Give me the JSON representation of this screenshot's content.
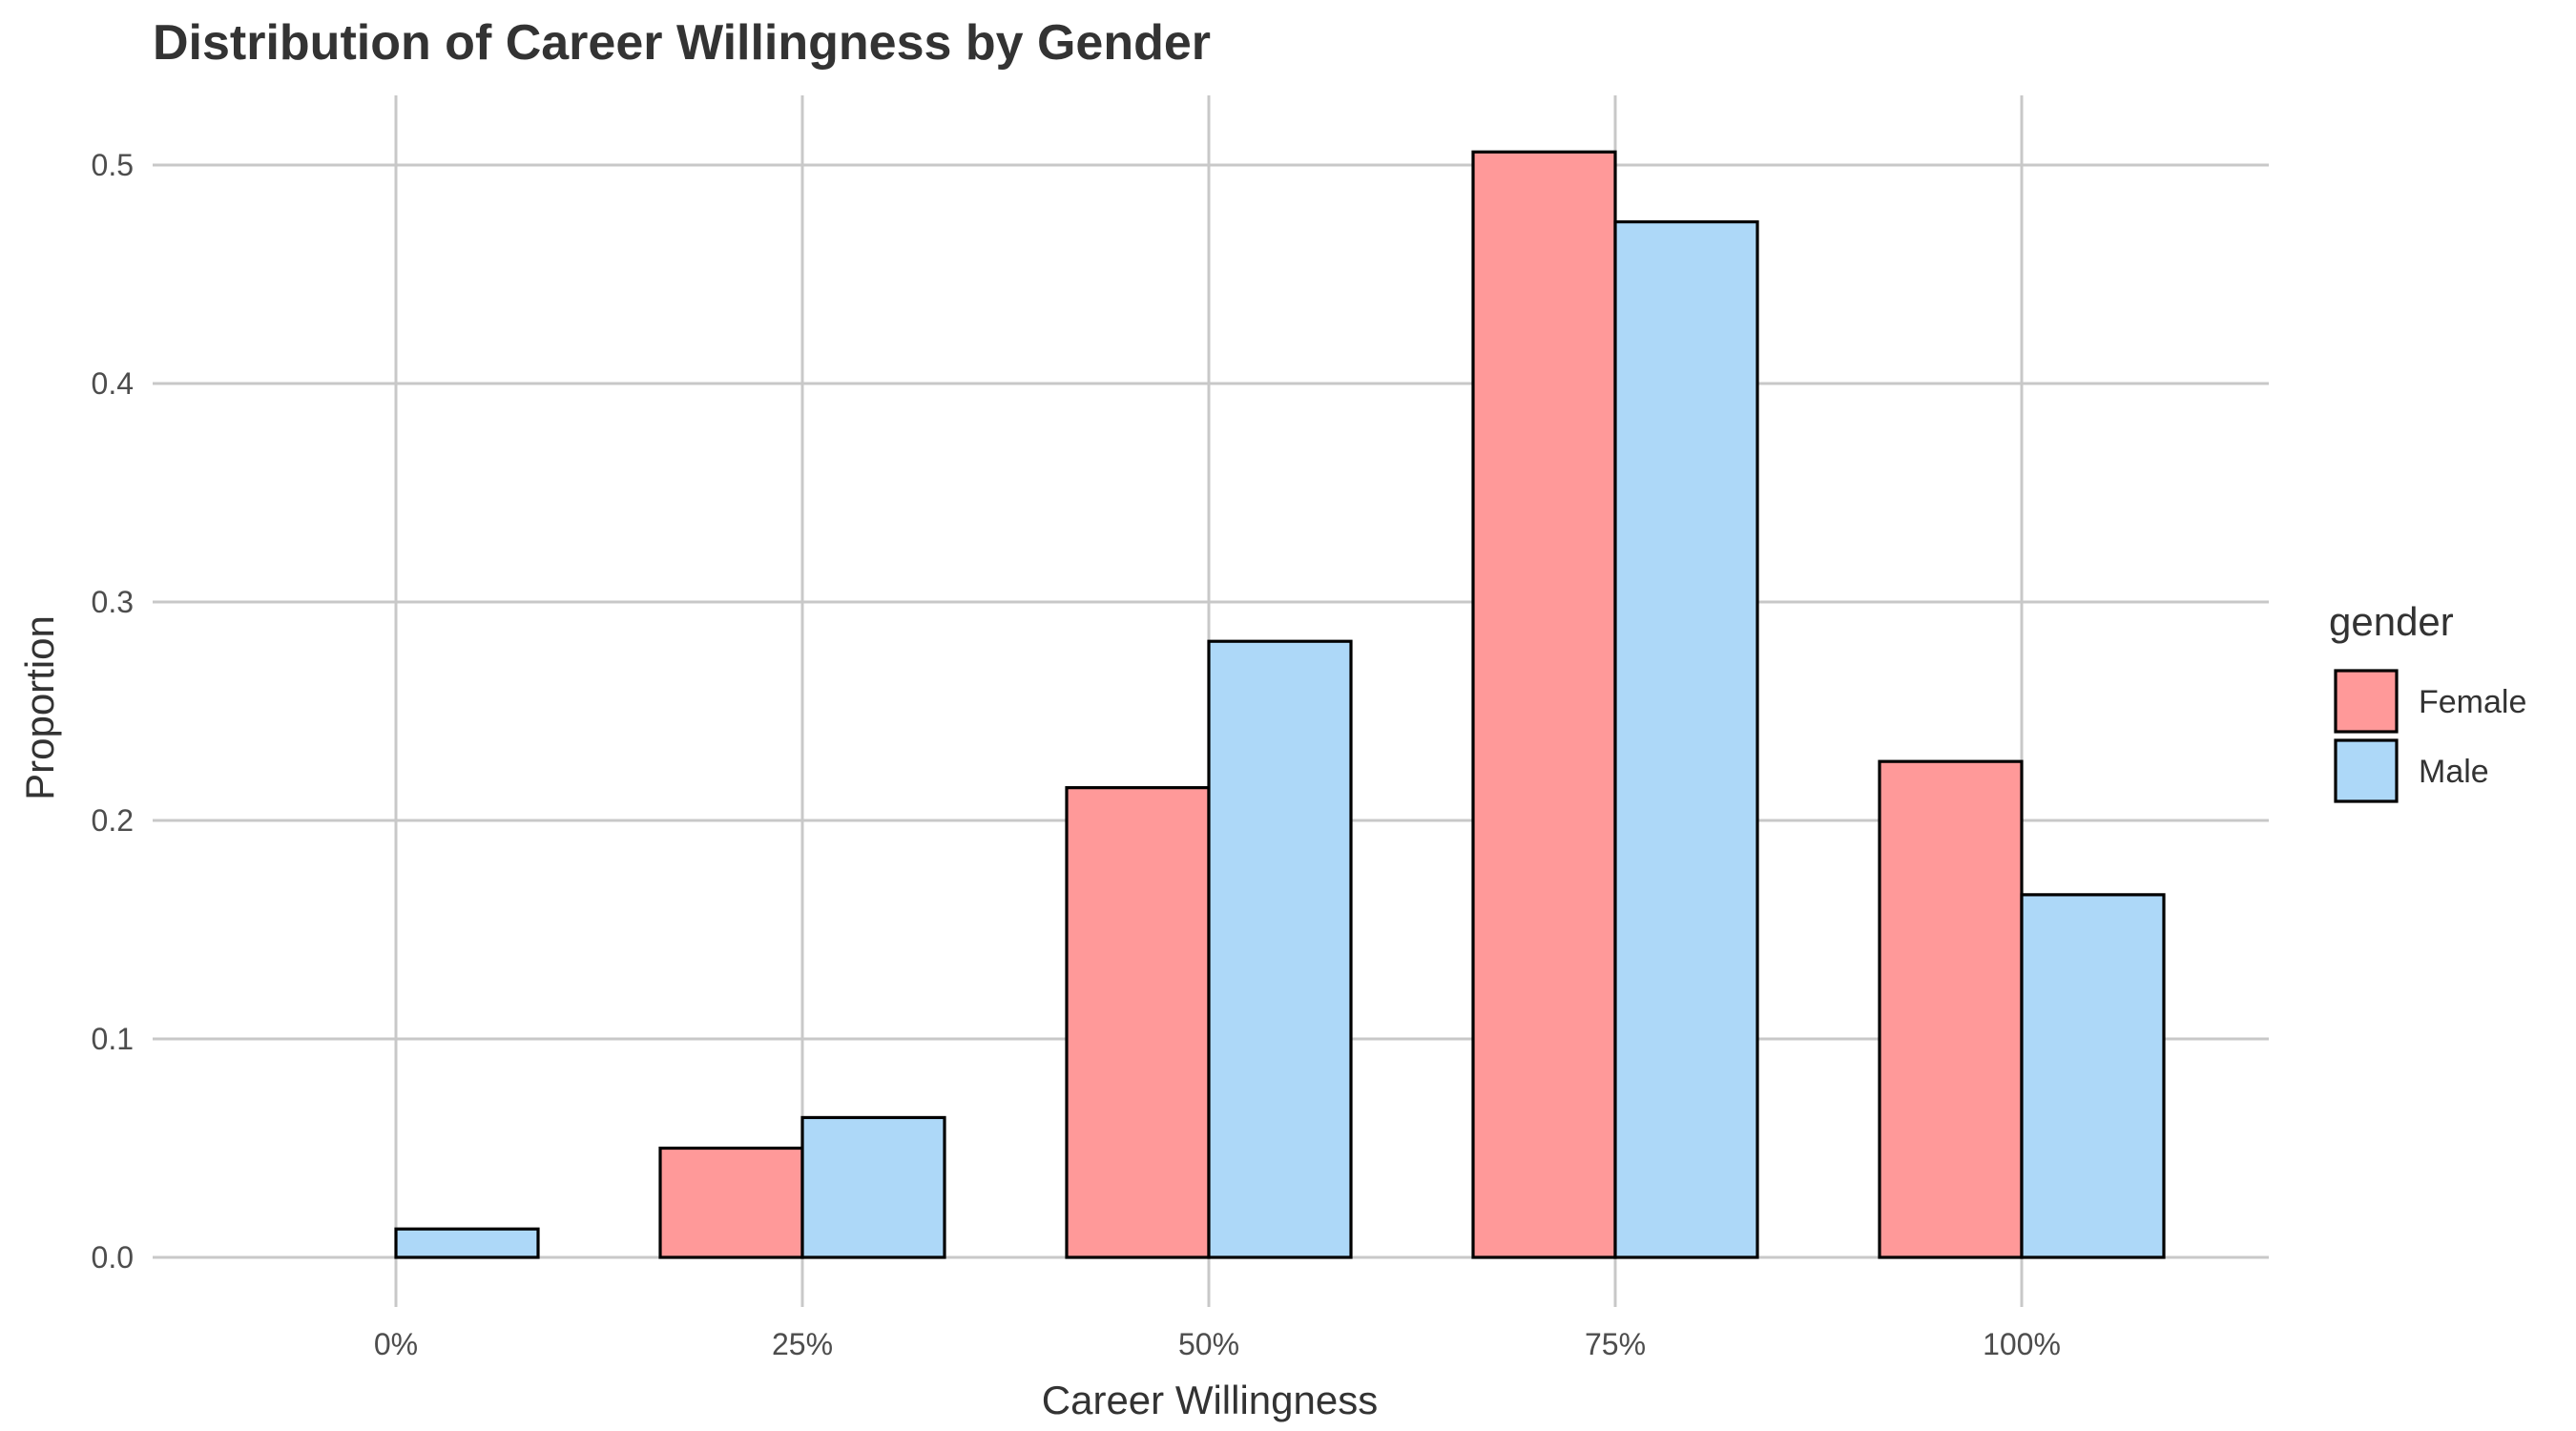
{
  "chart_data": {
    "type": "bar",
    "title": "Distribution of Career Willingness by Gender",
    "xlabel": "Career Willingness",
    "ylabel": "Proportion",
    "categories": [
      "0%",
      "25%",
      "50%",
      "75%",
      "100%"
    ],
    "series": [
      {
        "name": "Female",
        "color": "#ff9999",
        "values": [
          0.0,
          0.05,
          0.215,
          0.506,
          0.227
        ]
      },
      {
        "name": "Male",
        "color": "#add8f8",
        "values": [
          0.013,
          0.064,
          0.282,
          0.474,
          0.166
        ]
      }
    ],
    "ylim": [
      -0.018,
      0.53
    ],
    "yticks": [
      0.0,
      0.1,
      0.2,
      0.3,
      0.4,
      0.5
    ],
    "ytick_labels": [
      "0.0",
      "0.1",
      "0.2",
      "0.3",
      "0.4",
      "0.5"
    ],
    "grid": true,
    "legend": {
      "title": "gender",
      "position": "right"
    }
  }
}
